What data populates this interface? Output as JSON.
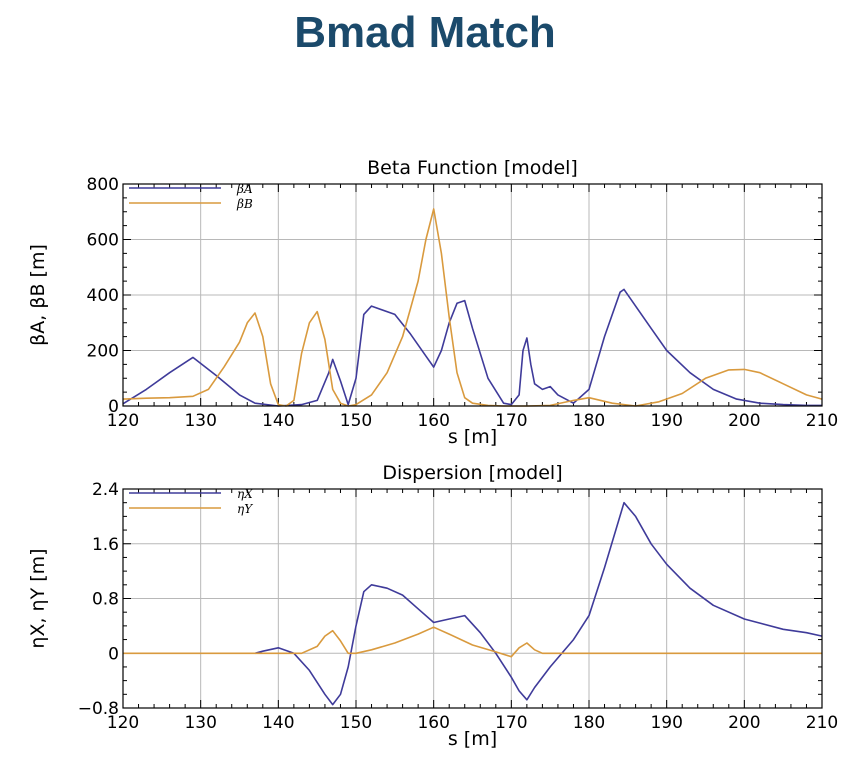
{
  "page": {
    "title": "Bmad Match"
  },
  "chart_data": [
    {
      "type": "line",
      "title": "Beta Function  [model]",
      "xlabel": "s [m]",
      "ylabel": "βA, βB [m]",
      "xlim": [
        120,
        210
      ],
      "ylim": [
        0,
        800
      ],
      "xticks": [
        120,
        130,
        140,
        150,
        160,
        170,
        180,
        190,
        200,
        210
      ],
      "yticks": [
        0,
        200,
        400,
        600,
        800
      ],
      "grid": true,
      "legend_position": "top-left",
      "series": [
        {
          "name": "βA",
          "color": "#3f3b9a",
          "x": [
            120,
            123,
            126,
            129,
            132,
            135,
            137,
            140,
            143,
            145,
            146.5,
            147,
            148,
            149,
            150,
            151,
            152,
            155,
            157,
            159,
            160,
            161,
            162,
            163,
            164,
            165,
            167,
            169,
            170,
            171,
            171.5,
            172,
            172.5,
            173,
            174,
            175,
            176,
            178,
            180,
            182,
            184,
            184.5,
            186,
            188,
            190,
            193,
            196,
            199,
            202,
            205,
            208,
            210
          ],
          "y": [
            8,
            60,
            120,
            175,
            110,
            40,
            10,
            0,
            5,
            20,
            120,
            168,
            90,
            5,
            100,
            330,
            360,
            330,
            260,
            180,
            140,
            200,
            300,
            370,
            380,
            280,
            100,
            10,
            5,
            40,
            200,
            245,
            150,
            80,
            60,
            70,
            40,
            10,
            60,
            250,
            410,
            420,
            360,
            280,
            200,
            120,
            60,
            25,
            10,
            5,
            2,
            2
          ]
        },
        {
          "name": "βB",
          "color": "#d99a3e",
          "x": [
            120,
            123,
            126,
            129,
            131,
            133,
            135,
            136,
            137,
            138,
            139,
            140,
            141,
            142,
            143,
            144,
            145,
            146,
            147,
            148,
            149,
            150,
            152,
            154,
            156,
            157,
            158,
            159,
            160,
            161,
            162,
            163,
            164,
            165,
            167,
            169,
            172,
            175,
            178,
            180,
            183,
            186,
            189,
            192,
            195,
            198,
            200,
            202,
            205,
            208,
            210
          ],
          "y": [
            25,
            28,
            30,
            35,
            60,
            140,
            230,
            300,
            335,
            250,
            80,
            5,
            0,
            20,
            190,
            300,
            340,
            240,
            60,
            10,
            0,
            5,
            40,
            120,
            250,
            350,
            450,
            600,
            710,
            550,
            320,
            120,
            30,
            10,
            2,
            0,
            0,
            2,
            20,
            30,
            10,
            0,
            15,
            45,
            100,
            130,
            132,
            120,
            80,
            40,
            25
          ]
        }
      ]
    },
    {
      "type": "line",
      "title": "Dispersion  [model]",
      "xlabel": "s [m]",
      "ylabel": "ηX, ηY [m]",
      "xlim": [
        120,
        210
      ],
      "ylim": [
        -0.8,
        2.4
      ],
      "xticks": [
        120,
        130,
        140,
        150,
        160,
        170,
        180,
        190,
        200,
        210
      ],
      "yticks": [
        -0.8,
        0,
        0.8,
        1.6,
        2.4
      ],
      "grid": true,
      "legend_position": "top-left",
      "series": [
        {
          "name": "ηX",
          "color": "#3f3b9a",
          "x": [
            137,
            138,
            140,
            142,
            144,
            146,
            147,
            148,
            149,
            150,
            151,
            152,
            154,
            156,
            158,
            160,
            162,
            164,
            166,
            168,
            170,
            171,
            172,
            173,
            175,
            178,
            180,
            182,
            184.5,
            186,
            188,
            190,
            193,
            196,
            200,
            205,
            208,
            210
          ],
          "y": [
            0,
            0.03,
            0.08,
            0,
            -0.25,
            -0.6,
            -0.75,
            -0.6,
            -0.2,
            0.4,
            0.9,
            1.0,
            0.95,
            0.85,
            0.65,
            0.45,
            0.5,
            0.55,
            0.3,
            0,
            -0.35,
            -0.55,
            -0.68,
            -0.5,
            -0.2,
            0.2,
            0.55,
            1.25,
            2.2,
            2.0,
            1.6,
            1.3,
            0.95,
            0.7,
            0.5,
            0.35,
            0.3,
            0.25
          ]
        },
        {
          "name": "ηY",
          "color": "#d99a3e",
          "x": [
            120,
            140,
            143,
            145,
            146,
            147,
            148,
            149,
            150,
            152,
            155,
            158,
            160,
            162,
            165,
            168,
            170,
            171,
            172,
            173,
            174,
            176,
            180,
            190,
            200,
            210
          ],
          "y": [
            0,
            0,
            0,
            0.1,
            0.25,
            0.33,
            0.18,
            0,
            0,
            0.05,
            0.15,
            0.28,
            0.38,
            0.28,
            0.12,
            0.02,
            -0.05,
            0.08,
            0.15,
            0.05,
            0,
            0,
            0,
            0,
            0,
            0
          ]
        }
      ]
    }
  ]
}
